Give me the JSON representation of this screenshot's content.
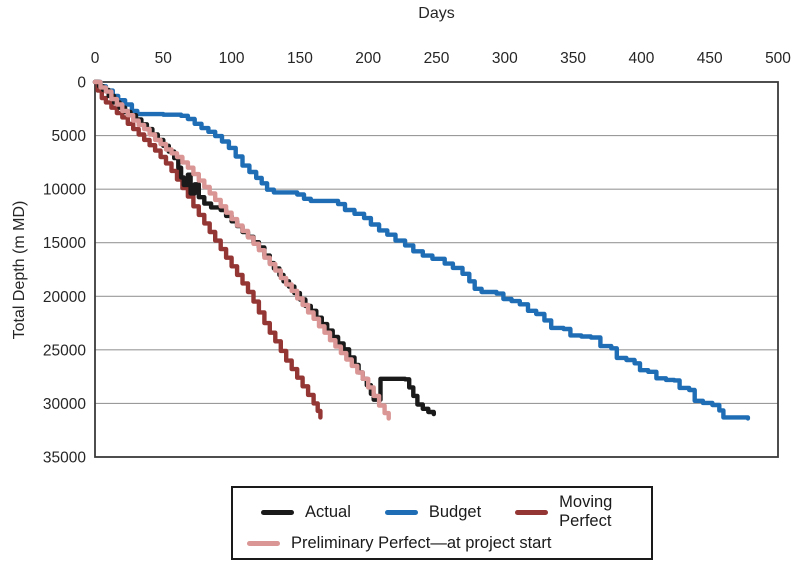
{
  "chart_data": {
    "type": "line",
    "line_style": "step-after",
    "xlabel": "Days",
    "ylabel": "Total Depth (m MD)",
    "xlim": [
      0,
      500
    ],
    "ylim": [
      0,
      35000
    ],
    "y_inverted": true,
    "grid": "horizontal",
    "legend_position": "bottom",
    "x_ticks": [
      0,
      50,
      100,
      150,
      200,
      250,
      300,
      350,
      400,
      450,
      500
    ],
    "y_ticks": [
      0,
      5000,
      10000,
      15000,
      20000,
      25000,
      30000,
      35000
    ],
    "colors": {
      "actual": "#1a1a1a",
      "budget": "#1f6eb5",
      "moving_perfect": "#943634",
      "preliminary_perfect": "#d99694",
      "gridline": "#9a9a9a",
      "plot_border": "#3a3a3a",
      "text": "#262626"
    },
    "series": [
      {
        "name": "Actual",
        "color": "#1a1a1a",
        "points": [
          [
            0,
            0
          ],
          [
            3,
            400
          ],
          [
            6,
            750
          ],
          [
            10,
            1300
          ],
          [
            14,
            1900
          ],
          [
            18,
            2400
          ],
          [
            22,
            2800
          ],
          [
            26,
            3100
          ],
          [
            30,
            3500
          ],
          [
            34,
            3950
          ],
          [
            38,
            4400
          ],
          [
            42,
            4900
          ],
          [
            46,
            5400
          ],
          [
            50,
            5950
          ],
          [
            54,
            6500
          ],
          [
            58,
            7100
          ],
          [
            61,
            8000
          ],
          [
            63,
            8900
          ],
          [
            65,
            9600
          ],
          [
            68,
            8650
          ],
          [
            70,
            10400
          ],
          [
            73,
            9550
          ],
          [
            76,
            10750
          ],
          [
            80,
            11350
          ],
          [
            85,
            11700
          ],
          [
            92,
            11950
          ],
          [
            96,
            12500
          ],
          [
            100,
            13000
          ],
          [
            104,
            13450
          ],
          [
            108,
            14000
          ],
          [
            112,
            14450
          ],
          [
            116,
            14950
          ],
          [
            120,
            15450
          ],
          [
            124,
            16200
          ],
          [
            128,
            16900
          ],
          [
            131,
            17400
          ],
          [
            135,
            18000
          ],
          [
            138,
            18600
          ],
          [
            142,
            19100
          ],
          [
            146,
            19700
          ],
          [
            150,
            20300
          ],
          [
            154,
            20900
          ],
          [
            158,
            21350
          ],
          [
            162,
            22000
          ],
          [
            166,
            22600
          ],
          [
            170,
            23200
          ],
          [
            174,
            23800
          ],
          [
            178,
            24400
          ],
          [
            182,
            24950
          ],
          [
            186,
            25700
          ],
          [
            190,
            26400
          ],
          [
            193,
            27100
          ],
          [
            196,
            27700
          ],
          [
            199,
            28300
          ],
          [
            202,
            29100
          ],
          [
            204,
            29650
          ],
          [
            209,
            27700
          ],
          [
            227,
            27750
          ],
          [
            230,
            28500
          ],
          [
            233,
            29300
          ],
          [
            236,
            30100
          ],
          [
            240,
            30500
          ],
          [
            244,
            30800
          ],
          [
            248,
            31000
          ]
        ]
      },
      {
        "name": "Budget",
        "color": "#1f6eb5",
        "points": [
          [
            0,
            0
          ],
          [
            4,
            400
          ],
          [
            8,
            800
          ],
          [
            13,
            1300
          ],
          [
            17,
            1700
          ],
          [
            22,
            2100
          ],
          [
            27,
            2700
          ],
          [
            31,
            3000
          ],
          [
            50,
            3050
          ],
          [
            63,
            3150
          ],
          [
            68,
            3450
          ],
          [
            73,
            3900
          ],
          [
            78,
            4300
          ],
          [
            83,
            4650
          ],
          [
            88,
            5050
          ],
          [
            93,
            5550
          ],
          [
            98,
            6150
          ],
          [
            103,
            6950
          ],
          [
            108,
            7800
          ],
          [
            113,
            8400
          ],
          [
            118,
            8950
          ],
          [
            122,
            9450
          ],
          [
            126,
            10050
          ],
          [
            131,
            10300
          ],
          [
            148,
            10500
          ],
          [
            153,
            10900
          ],
          [
            158,
            11100
          ],
          [
            178,
            11400
          ],
          [
            183,
            11950
          ],
          [
            190,
            12300
          ],
          [
            197,
            12700
          ],
          [
            202,
            13300
          ],
          [
            208,
            13850
          ],
          [
            214,
            14250
          ],
          [
            220,
            14800
          ],
          [
            227,
            15250
          ],
          [
            233,
            15800
          ],
          [
            240,
            16200
          ],
          [
            247,
            16500
          ],
          [
            256,
            16950
          ],
          [
            262,
            17350
          ],
          [
            269,
            17900
          ],
          [
            274,
            18600
          ],
          [
            278,
            19300
          ],
          [
            283,
            19600
          ],
          [
            294,
            19750
          ],
          [
            299,
            20250
          ],
          [
            305,
            20450
          ],
          [
            311,
            20750
          ],
          [
            317,
            21350
          ],
          [
            323,
            21650
          ],
          [
            329,
            22250
          ],
          [
            334,
            22950
          ],
          [
            343,
            23050
          ],
          [
            348,
            23650
          ],
          [
            356,
            23750
          ],
          [
            363,
            23850
          ],
          [
            370,
            24650
          ],
          [
            378,
            24850
          ],
          [
            382,
            25750
          ],
          [
            389,
            25950
          ],
          [
            395,
            26250
          ],
          [
            399,
            26900
          ],
          [
            405,
            27050
          ],
          [
            411,
            27650
          ],
          [
            418,
            27800
          ],
          [
            424,
            27850
          ],
          [
            428,
            28550
          ],
          [
            435,
            28750
          ],
          [
            439,
            29750
          ],
          [
            445,
            29950
          ],
          [
            452,
            30150
          ],
          [
            457,
            30650
          ],
          [
            460,
            31300
          ],
          [
            478,
            31400
          ]
        ]
      },
      {
        "name": "Moving Perfect",
        "color": "#943634",
        "points": [
          [
            0,
            0
          ],
          [
            2,
            800
          ],
          [
            5,
            1500
          ],
          [
            8,
            1900
          ],
          [
            12,
            2400
          ],
          [
            16,
            2900
          ],
          [
            20,
            3300
          ],
          [
            24,
            3900
          ],
          [
            28,
            4400
          ],
          [
            32,
            4900
          ],
          [
            36,
            5400
          ],
          [
            40,
            5900
          ],
          [
            44,
            6400
          ],
          [
            48,
            7000
          ],
          [
            52,
            7600
          ],
          [
            56,
            8300
          ],
          [
            60,
            9100
          ],
          [
            64,
            9900
          ],
          [
            68,
            10700
          ],
          [
            72,
            11600
          ],
          [
            76,
            12400
          ],
          [
            80,
            13200
          ],
          [
            84,
            14000
          ],
          [
            88,
            14800
          ],
          [
            92,
            15600
          ],
          [
            96,
            16400
          ],
          [
            100,
            17200
          ],
          [
            104,
            18000
          ],
          [
            108,
            18800
          ],
          [
            112,
            19600
          ],
          [
            116,
            20500
          ],
          [
            120,
            21500
          ],
          [
            124,
            22500
          ],
          [
            128,
            23400
          ],
          [
            132,
            24200
          ],
          [
            136,
            25100
          ],
          [
            140,
            26000
          ],
          [
            144,
            26800
          ],
          [
            148,
            27600
          ],
          [
            152,
            28400
          ],
          [
            156,
            29200
          ],
          [
            160,
            30000
          ],
          [
            163,
            30700
          ],
          [
            165,
            31300
          ]
        ]
      },
      {
        "name": "Preliminary Perfect—at project start",
        "color": "#d99694",
        "points": [
          [
            0,
            0
          ],
          [
            4,
            500
          ],
          [
            8,
            900
          ],
          [
            12,
            1600
          ],
          [
            16,
            2100
          ],
          [
            20,
            2700
          ],
          [
            24,
            3100
          ],
          [
            28,
            3600
          ],
          [
            32,
            4000
          ],
          [
            36,
            4400
          ],
          [
            40,
            4900
          ],
          [
            44,
            5400
          ],
          [
            48,
            5800
          ],
          [
            52,
            6300
          ],
          [
            56,
            6650
          ],
          [
            60,
            7000
          ],
          [
            64,
            7500
          ],
          [
            68,
            8000
          ],
          [
            72,
            8600
          ],
          [
            76,
            9200
          ],
          [
            80,
            9800
          ],
          [
            84,
            10400
          ],
          [
            88,
            11000
          ],
          [
            92,
            11600
          ],
          [
            96,
            12200
          ],
          [
            100,
            12800
          ],
          [
            104,
            13400
          ],
          [
            108,
            13900
          ],
          [
            112,
            14500
          ],
          [
            116,
            15100
          ],
          [
            120,
            15700
          ],
          [
            124,
            16400
          ],
          [
            128,
            17000
          ],
          [
            132,
            17600
          ],
          [
            136,
            18300
          ],
          [
            140,
            18900
          ],
          [
            144,
            19500
          ],
          [
            148,
            20200
          ],
          [
            152,
            20800
          ],
          [
            156,
            21500
          ],
          [
            160,
            22100
          ],
          [
            164,
            22800
          ],
          [
            168,
            23400
          ],
          [
            172,
            24100
          ],
          [
            176,
            24700
          ],
          [
            180,
            25300
          ],
          [
            184,
            25900
          ],
          [
            188,
            26500
          ],
          [
            192,
            27100
          ],
          [
            196,
            27700
          ],
          [
            200,
            28500
          ],
          [
            204,
            29300
          ],
          [
            208,
            30200
          ],
          [
            212,
            30900
          ],
          [
            215,
            31400
          ]
        ]
      }
    ]
  }
}
